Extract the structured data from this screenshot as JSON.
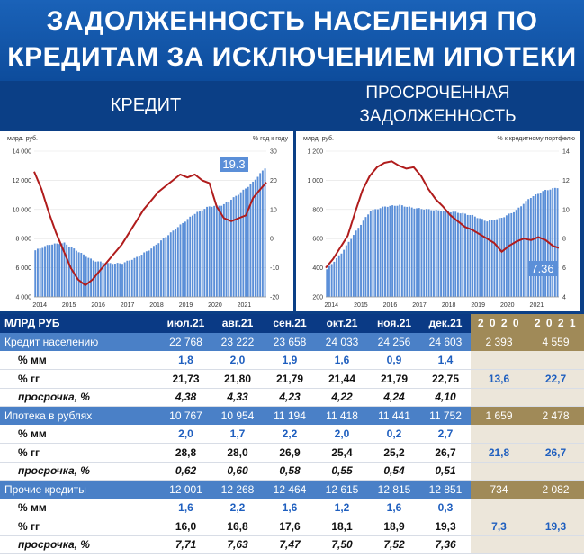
{
  "title": {
    "line1": "ЗАДОЛЖЕННОСТЬ НАСЕЛЕНИЯ ПО",
    "line2": "КРЕДИТАМ ЗА ИСКЛЮЧЕНИЕМ ИПОТЕКИ"
  },
  "section_left": "КРЕДИТ",
  "section_right": {
    "line1": "ПРОСРОЧЕННАЯ",
    "line2": "ЗАДОЛЖЕННОСТЬ"
  },
  "colors": {
    "bar": "#5b8fd8",
    "line": "#b01c1c",
    "header": "#0a3a85",
    "accent": "#4a80c7",
    "gold": "#a08a58"
  },
  "chart_data": [
    {
      "type": "bar+line",
      "left_unit": "млрд. руб.",
      "right_unit": "% год к году",
      "x_tick_labels": [
        "2014",
        "2015",
        "2016",
        "2017",
        "2018",
        "2019",
        "2020",
        "2021"
      ],
      "y_left_ticks": [
        "4 000",
        "6 000",
        "8 000",
        "10 000",
        "12 000",
        "14 000"
      ],
      "y_right_ticks": [
        "-20",
        "-10",
        "0",
        "10",
        "20",
        "30"
      ],
      "ylim_left": [
        4000,
        14000
      ],
      "ylim_right": [
        -20,
        30
      ],
      "annotation": "19.3",
      "bars_anchor_x": [
        2014.0,
        2014.5,
        2015.0,
        2015.5,
        2016.0,
        2016.5,
        2017.0,
        2017.5,
        2018.0,
        2018.5,
        2019.0,
        2019.5,
        2020.0,
        2020.5,
        2021.0,
        2021.5,
        2021.95
      ],
      "bars_anchor_y": [
        7200,
        7600,
        7700,
        7100,
        6500,
        6300,
        6300,
        6700,
        7300,
        8100,
        8900,
        9700,
        10200,
        10300,
        11000,
        11800,
        12850
      ],
      "line_x": [
        2014.0,
        2014.25,
        2014.5,
        2014.75,
        2015.0,
        2015.25,
        2015.5,
        2015.75,
        2016.0,
        2016.25,
        2016.5,
        2016.75,
        2017.0,
        2017.25,
        2017.5,
        2017.75,
        2018.0,
        2018.25,
        2018.5,
        2018.75,
        2019.0,
        2019.25,
        2019.5,
        2019.75,
        2020.0,
        2020.25,
        2020.5,
        2020.75,
        2021.0,
        2021.25,
        2021.5,
        2021.75,
        2021.95
      ],
      "line_y": [
        23,
        17,
        9,
        2,
        -4,
        -10,
        -14,
        -16,
        -14,
        -11,
        -8,
        -5,
        -2,
        2,
        6,
        10,
        13,
        16,
        18,
        20,
        22,
        21,
        22,
        20,
        19,
        11,
        7,
        6,
        7,
        8,
        14,
        17,
        19.3
      ]
    },
    {
      "type": "bar+line",
      "left_unit": "млрд. руб.",
      "right_unit": "% к кредитному портфелю",
      "x_tick_labels": [
        "2014",
        "2015",
        "2016",
        "2017",
        "2018",
        "2019",
        "2020",
        "2021"
      ],
      "y_left_ticks": [
        "200",
        "400",
        "600",
        "800",
        "1 000",
        "1 200"
      ],
      "y_right_ticks": [
        "4",
        "6",
        "8",
        "10",
        "12",
        "14"
      ],
      "ylim_left": [
        200,
        1200
      ],
      "ylim_right": [
        4,
        14
      ],
      "annotation": "7.36",
      "bars_anchor_x": [
        2014.0,
        2014.5,
        2015.0,
        2015.5,
        2016.0,
        2016.5,
        2017.0,
        2017.5,
        2018.0,
        2018.5,
        2019.0,
        2019.5,
        2020.0,
        2020.5,
        2021.0,
        2021.5,
        2021.95
      ],
      "bars_anchor_y": [
        390,
        500,
        650,
        790,
        820,
        830,
        810,
        800,
        790,
        780,
        760,
        720,
        740,
        790,
        880,
        930,
        950
      ],
      "line_x": [
        2014.0,
        2014.25,
        2014.5,
        2014.75,
        2015.0,
        2015.25,
        2015.5,
        2015.75,
        2016.0,
        2016.25,
        2016.5,
        2016.75,
        2017.0,
        2017.25,
        2017.5,
        2017.75,
        2018.0,
        2018.25,
        2018.5,
        2018.75,
        2019.0,
        2019.25,
        2019.5,
        2019.75,
        2020.0,
        2020.25,
        2020.5,
        2020.75,
        2021.0,
        2021.25,
        2021.5,
        2021.75,
        2021.95
      ],
      "line_y": [
        6.0,
        6.6,
        7.4,
        8.2,
        9.8,
        11.3,
        12.3,
        12.9,
        13.2,
        13.3,
        13.0,
        12.8,
        12.9,
        12.3,
        11.4,
        10.7,
        10.2,
        9.6,
        9.2,
        8.8,
        8.6,
        8.3,
        8.0,
        7.7,
        7.1,
        7.5,
        7.8,
        8.0,
        7.9,
        8.1,
        7.9,
        7.5,
        7.36
      ]
    }
  ],
  "table": {
    "header": [
      "МЛРД РУБ",
      "июл.21",
      "авг.21",
      "сен.21",
      "окт.21",
      "ноя.21",
      "дек.21",
      "2 0 2 0",
      "2 0 2 1"
    ],
    "rows": [
      {
        "kind": "main",
        "cells": [
          "Кредит населению",
          "22 768",
          "23 222",
          "23 658",
          "24 033",
          "24 256",
          "24 603",
          "2 393",
          "4 559"
        ]
      },
      {
        "kind": "mm",
        "cells": [
          "% мм",
          "1,8",
          "2,0",
          "1,9",
          "1,6",
          "0,9",
          "1,4",
          "",
          ""
        ]
      },
      {
        "kind": "gg",
        "cells": [
          "% гг",
          "21,73",
          "21,80",
          "21,79",
          "21,44",
          "21,79",
          "22,75",
          "13,6",
          "22,7"
        ]
      },
      {
        "kind": "pr",
        "cells": [
          "просрочка, %",
          "4,38",
          "4,33",
          "4,23",
          "4,22",
          "4,24",
          "4,10",
          "",
          ""
        ]
      },
      {
        "kind": "main",
        "cells": [
          "Ипотека в рублях",
          "10 767",
          "10 954",
          "11 194",
          "11 418",
          "11 441",
          "11 752",
          "1 659",
          "2 478"
        ]
      },
      {
        "kind": "mm",
        "cells": [
          "% мм",
          "2,0",
          "1,7",
          "2,2",
          "2,0",
          "0,2",
          "2,7",
          "",
          ""
        ]
      },
      {
        "kind": "gg",
        "cells": [
          "% гг",
          "28,8",
          "28,0",
          "26,9",
          "25,4",
          "25,2",
          "26,7",
          "21,8",
          "26,7"
        ]
      },
      {
        "kind": "pr",
        "cells": [
          "просрочка, %",
          "0,62",
          "0,60",
          "0,58",
          "0,55",
          "0,54",
          "0,51",
          "",
          ""
        ]
      },
      {
        "kind": "main",
        "cells": [
          "Прочие кредиты",
          "12 001",
          "12 268",
          "12 464",
          "12 615",
          "12 815",
          "12 851",
          "734",
          "2 082"
        ]
      },
      {
        "kind": "mm",
        "cells": [
          "% мм",
          "1,6",
          "2,2",
          "1,6",
          "1,2",
          "1,6",
          "0,3",
          "",
          ""
        ]
      },
      {
        "kind": "gg",
        "cells": [
          "% гг",
          "16,0",
          "16,8",
          "17,6",
          "18,1",
          "18,9",
          "19,3",
          "7,3",
          "19,3"
        ]
      },
      {
        "kind": "pr",
        "cells": [
          "просрочка, %",
          "7,71",
          "7,63",
          "7,47",
          "7,50",
          "7,52",
          "7,36",
          "",
          ""
        ]
      }
    ]
  }
}
